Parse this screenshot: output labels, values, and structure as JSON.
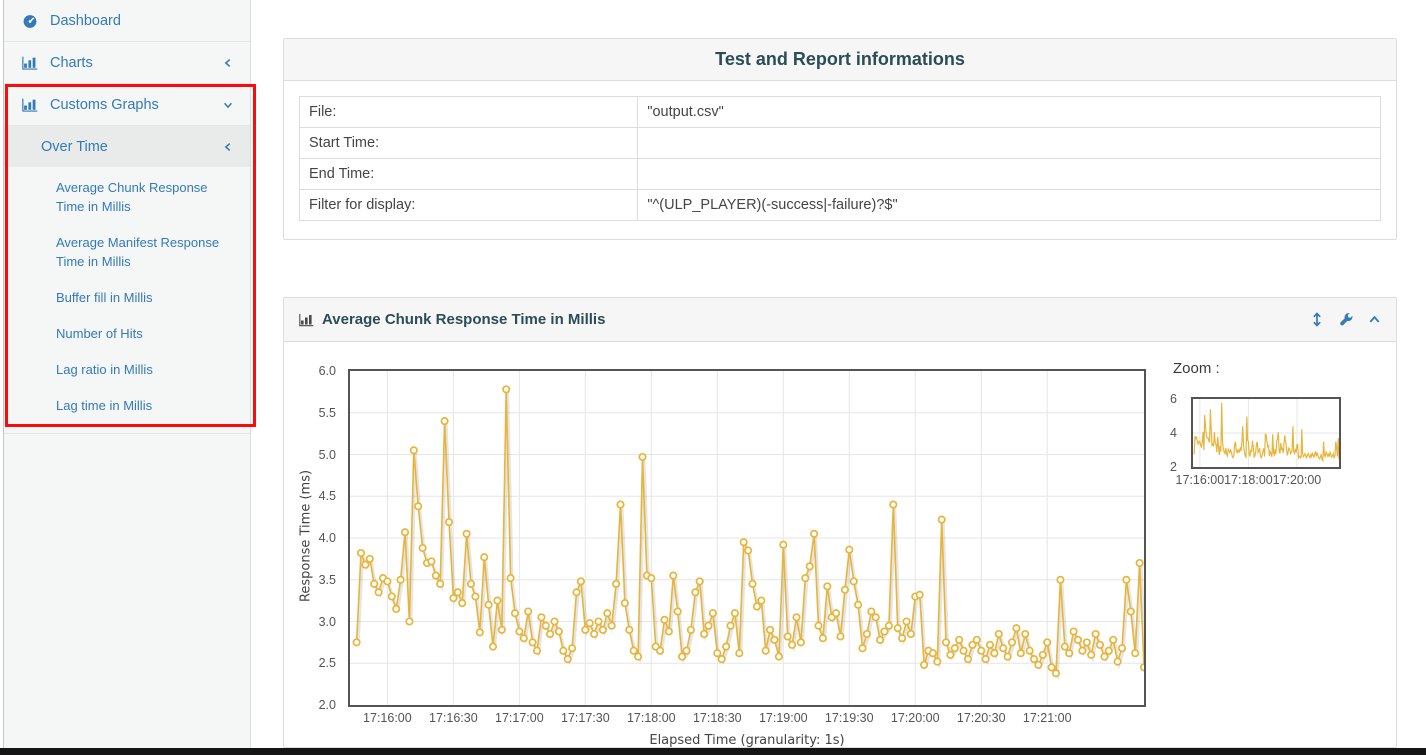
{
  "colors": {
    "accent_blue": "#337ab7",
    "series_gold": "#e8b53a",
    "title_teal": "#2b4d56",
    "annotation_red": "#fb0b0b",
    "sidebar_bg": "#f5f6f6",
    "active_row_bg": "#e9eaea",
    "panel_header_bg": "#f6f6f6",
    "grid_gray": "#e6e6e6",
    "plot_border": "#545454"
  },
  "sidebar": {
    "items": [
      {
        "label": "Dashboard",
        "icon": "dashboard-icon",
        "chevron": null
      },
      {
        "label": "Charts",
        "icon": "bar-chart-icon",
        "chevron": "left"
      },
      {
        "label": "Customs Graphs",
        "icon": "bar-chart-icon",
        "chevron": "down"
      }
    ],
    "over_time": {
      "label": "Over Time",
      "chevron": "left"
    },
    "subitems": [
      "Average Chunk Response Time in Millis",
      "Average Manifest Response Time in Millis",
      "Buffer fill in Millis",
      "Number of Hits",
      "Lag ratio in Millis",
      "Lag time in Millis"
    ]
  },
  "info_panel": {
    "title": "Test and Report informations",
    "rows": [
      {
        "label": "File:",
        "value": "\"output.csv\""
      },
      {
        "label": "Start Time:",
        "value": ""
      },
      {
        "label": "End Time:",
        "value": ""
      },
      {
        "label": "Filter for display:",
        "value": "\"^(ULP_PLAYER)(-success|-failure)?$\""
      }
    ]
  },
  "chart_panel": {
    "title": "Average Chunk Response Time in Millis",
    "zoom_label": "Zoom :",
    "tool_icons": [
      "resize-vertical-icon",
      "wrench-icon",
      "collapse-icon"
    ]
  },
  "chart_data": {
    "type": "line",
    "title": "Average Chunk Response Time in Millis",
    "xlabel": "Elapsed Time (granularity: 1s)",
    "ylabel": "Response Time (ms)",
    "ylim": [
      2,
      6
    ],
    "grid": true,
    "y_tick_labels": [
      "6.0",
      "5.5",
      "5.0",
      "4.5",
      "4.0",
      "3.5",
      "3.0",
      "2.5",
      "2.0"
    ],
    "y_tick_values": [
      6,
      5.5,
      5,
      4.5,
      4,
      3.5,
      3,
      2.5,
      2
    ],
    "y_grid_values": [
      5.5,
      5,
      4.5,
      4,
      3.5,
      3,
      2.5
    ],
    "x_domain_seconds": [
      0,
      361
    ],
    "x_tick_seconds": [
      17,
      47,
      77,
      107,
      137,
      167,
      197,
      227,
      257,
      287,
      317
    ],
    "x_tick_labels": [
      "17:16:00",
      "17:16:30",
      "17:17:00",
      "17:17:30",
      "17:18:00",
      "17:18:30",
      "17:19:00",
      "17:19:30",
      "17:20:00",
      "17:20:30",
      "17:21:00"
    ],
    "series_name": "Average Chunk Response Time",
    "x_start_second": 3,
    "x_step_seconds": 2,
    "values": [
      2.75,
      3.82,
      3.68,
      3.75,
      3.45,
      3.35,
      3.52,
      3.48,
      3.3,
      3.15,
      3.5,
      4.07,
      3.0,
      5.05,
      4.38,
      3.88,
      3.7,
      3.72,
      3.55,
      3.45,
      5.4,
      4.19,
      3.28,
      3.35,
      3.22,
      4.05,
      3.45,
      3.3,
      2.87,
      3.77,
      3.2,
      2.7,
      3.25,
      2.9,
      5.78,
      3.52,
      3.1,
      2.88,
      2.8,
      3.12,
      2.75,
      2.65,
      3.05,
      2.95,
      2.85,
      3.0,
      2.88,
      2.65,
      2.55,
      2.68,
      3.35,
      3.48,
      2.9,
      2.98,
      2.85,
      3.0,
      2.9,
      3.1,
      2.95,
      3.45,
      4.4,
      3.22,
      2.9,
      2.65,
      2.58,
      4.97,
      3.55,
      3.52,
      2.7,
      2.65,
      3.02,
      2.88,
      3.55,
      3.12,
      2.58,
      2.65,
      2.9,
      3.35,
      3.48,
      2.85,
      2.95,
      3.1,
      2.62,
      2.55,
      2.7,
      2.95,
      3.1,
      2.62,
      3.95,
      3.85,
      3.45,
      3.18,
      3.25,
      2.65,
      2.9,
      2.78,
      2.58,
      3.92,
      2.82,
      2.72,
      3.05,
      2.75,
      3.52,
      3.66,
      4.05,
      2.95,
      2.8,
      3.42,
      3.05,
      3.1,
      2.82,
      3.38,
      3.86,
      3.48,
      3.2,
      2.68,
      2.85,
      3.12,
      3.05,
      2.78,
      2.88,
      2.95,
      4.4,
      2.92,
      2.8,
      3.0,
      2.85,
      3.3,
      3.32,
      2.48,
      2.65,
      2.62,
      2.52,
      4.22,
      2.75,
      2.6,
      2.68,
      2.78,
      2.65,
      2.55,
      2.72,
      2.78,
      2.65,
      2.55,
      2.72,
      2.62,
      2.85,
      2.68,
      2.58,
      2.75,
      2.92,
      2.62,
      2.85,
      2.65,
      2.55,
      2.48,
      2.6,
      2.75,
      2.45,
      2.38,
      3.5,
      2.7,
      2.62,
      2.88,
      2.78,
      2.65,
      2.75,
      2.6,
      2.85,
      2.72,
      2.58,
      2.65,
      2.78,
      2.52,
      2.68,
      3.5,
      3.12,
      2.62,
      3.7,
      2.45
    ],
    "mini": {
      "y_tick_labels": [
        "6",
        "4",
        "2"
      ],
      "y_tick_values": [
        6,
        4,
        2
      ],
      "y_grid_values": [
        4
      ],
      "x_tick_seconds": [
        17,
        137,
        257
      ],
      "x_tick_labels": [
        "17:16:00",
        "17:18:00",
        "17:20:00"
      ]
    }
  }
}
